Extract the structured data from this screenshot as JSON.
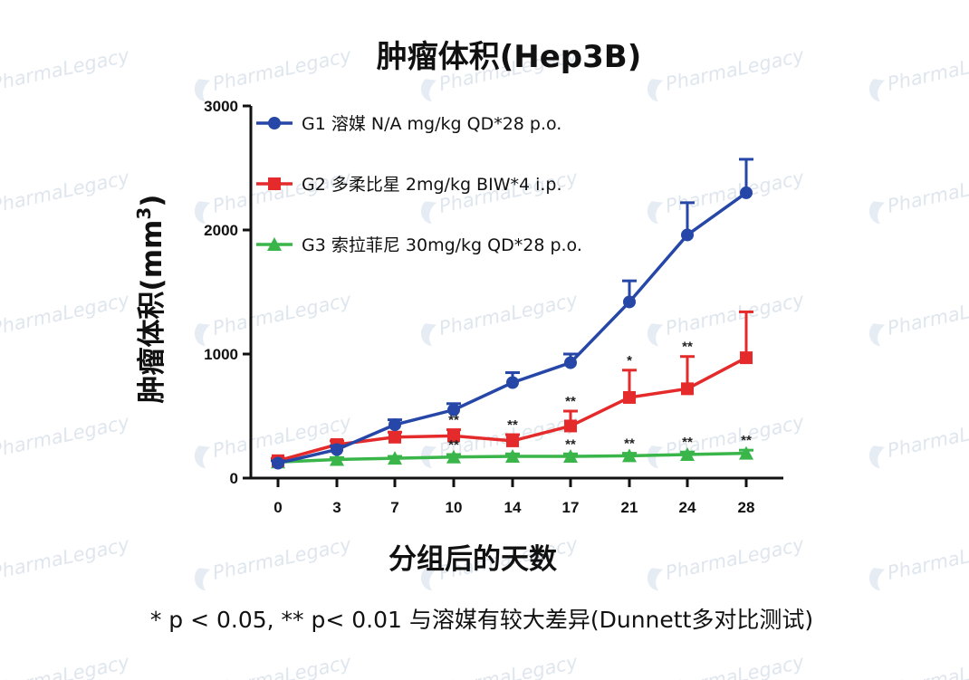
{
  "watermark": {
    "text": "PharmaLegacy"
  },
  "chart_data": {
    "type": "line",
    "title": "肿瘤体积(Hep3B)",
    "xlabel": "分组后的天数",
    "ylabel": "肿瘤体积(mm",
    "ylabel_sup": "3",
    "ylabel_close": ")",
    "x": [
      0,
      3,
      7,
      10,
      14,
      17,
      21,
      24,
      28
    ],
    "x_tick_labels": [
      "0",
      "3",
      "7",
      "10",
      "14",
      "17",
      "21",
      "24",
      "28"
    ],
    "y_ticks": [
      0,
      1000,
      2000,
      3000
    ],
    "y_tick_labels": [
      "0",
      "1000",
      "2000",
      "3000"
    ],
    "ylim": [
      0,
      3000
    ],
    "series": [
      {
        "name": "G1 溶媒 N/A mg/kg QD*28 p.o.",
        "color": "#2647a8",
        "marker": "circle",
        "values": [
          120,
          230,
          430,
          550,
          770,
          930,
          1420,
          1960,
          2300
        ],
        "errors": [
          20,
          30,
          40,
          50,
          80,
          70,
          170,
          260,
          270
        ]
      },
      {
        "name": "G2 多柔比星 2mg/kg BIW*4 i.p.",
        "color": "#e42a2a",
        "marker": "square",
        "values": [
          140,
          270,
          330,
          340,
          300,
          420,
          650,
          720,
          970
        ],
        "errors": [
          20,
          30,
          40,
          50,
          50,
          120,
          220,
          260,
          370
        ],
        "significance": [
          "",
          "",
          "",
          "**",
          "**",
          "**",
          "*",
          "**",
          ""
        ]
      },
      {
        "name": "G3 索拉菲尼 30mg/kg QD*28 p.o.",
        "color": "#3ab54a",
        "marker": "triangle",
        "values": [
          130,
          150,
          160,
          170,
          175,
          175,
          180,
          190,
          200
        ],
        "errors": [
          10,
          15,
          15,
          20,
          20,
          20,
          20,
          20,
          25
        ],
        "significance": [
          "",
          "",
          "",
          "**",
          "",
          "**",
          "**",
          "**",
          "**"
        ]
      }
    ],
    "legend": "top-left",
    "footnote": "* p < 0.05, ** p< 0.01 与溶媒有较大差异(Dunnett多对比测试)"
  }
}
